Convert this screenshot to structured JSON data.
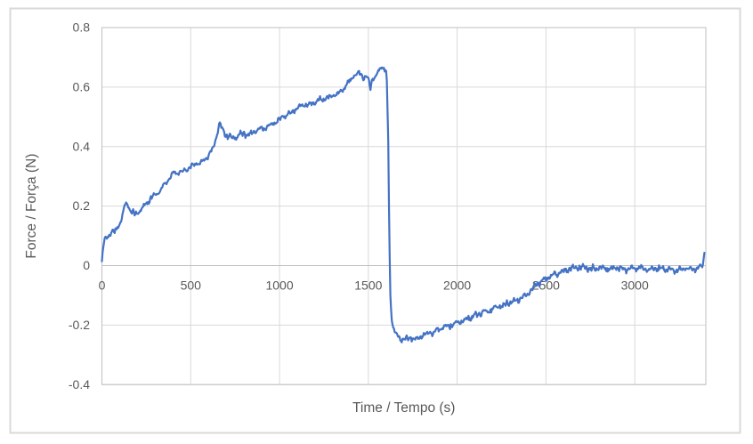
{
  "window": {
    "background": "#ffffff",
    "frame_border_color": "#d9d9d9"
  },
  "chart": {
    "tick_label_color": "#595959",
    "axis_title_color": "#595959",
    "gridline_color": "#d9d9d9",
    "axis_line_color": "#bfbfbf",
    "plot_background": "#ffffff"
  },
  "chart_data": {
    "type": "line",
    "title": "",
    "xlabel": "Time / Tempo (s)",
    "ylabel": "Force / Força (N)",
    "xlim": [
      0,
      3400
    ],
    "ylim": [
      -0.4,
      0.8
    ],
    "x_tick_values": [
      0,
      500,
      1000,
      1500,
      2000,
      2500,
      3000
    ],
    "x_tick_labels": [
      "0",
      "500",
      "1000",
      "1500",
      "2000",
      "2500",
      "3000"
    ],
    "y_tick_values": [
      0.8,
      0.6,
      0.4,
      0.2,
      0,
      -0.2,
      -0.4
    ],
    "y_tick_labels": [
      "0.8",
      "0.6",
      "0.4",
      "0.2",
      "0",
      "-0.2",
      "-0.4"
    ],
    "grid": true,
    "legend": false,
    "series": [
      {
        "name": "Force / Força",
        "color": "#4472C4",
        "line_width": 2.2,
        "noise_amplitude": 0.0085,
        "sample_step_s": 4,
        "points": [
          [
            0,
            0.012
          ],
          [
            6,
            0.055
          ],
          [
            14,
            0.085
          ],
          [
            25,
            0.093
          ],
          [
            40,
            0.105
          ],
          [
            55,
            0.116
          ],
          [
            70,
            0.112
          ],
          [
            85,
            0.128
          ],
          [
            100,
            0.142
          ],
          [
            112,
            0.155
          ],
          [
            122,
            0.19
          ],
          [
            132,
            0.205
          ],
          [
            142,
            0.21
          ],
          [
            155,
            0.19
          ],
          [
            170,
            0.176
          ],
          [
            185,
            0.172
          ],
          [
            200,
            0.178
          ],
          [
            225,
            0.19
          ],
          [
            250,
            0.21
          ],
          [
            285,
            0.232
          ],
          [
            310,
            0.243
          ],
          [
            340,
            0.262
          ],
          [
            370,
            0.285
          ],
          [
            400,
            0.307
          ],
          [
            425,
            0.313
          ],
          [
            455,
            0.316
          ],
          [
            490,
            0.33
          ],
          [
            525,
            0.342
          ],
          [
            560,
            0.347
          ],
          [
            590,
            0.36
          ],
          [
            625,
            0.39
          ],
          [
            648,
            0.44
          ],
          [
            662,
            0.478
          ],
          [
            680,
            0.455
          ],
          [
            705,
            0.437
          ],
          [
            740,
            0.428
          ],
          [
            775,
            0.441
          ],
          [
            805,
            0.443
          ],
          [
            835,
            0.44
          ],
          [
            870,
            0.456
          ],
          [
            915,
            0.462
          ],
          [
            960,
            0.476
          ],
          [
            1000,
            0.49
          ],
          [
            1040,
            0.505
          ],
          [
            1080,
            0.52
          ],
          [
            1125,
            0.538
          ],
          [
            1170,
            0.543
          ],
          [
            1220,
            0.553
          ],
          [
            1270,
            0.563
          ],
          [
            1320,
            0.576
          ],
          [
            1370,
            0.6
          ],
          [
            1400,
            0.625
          ],
          [
            1418,
            0.637
          ],
          [
            1445,
            0.646
          ],
          [
            1465,
            0.639
          ],
          [
            1490,
            0.633
          ],
          [
            1504,
            0.622
          ],
          [
            1511,
            0.588
          ],
          [
            1519,
            0.625
          ],
          [
            1535,
            0.633
          ],
          [
            1555,
            0.65
          ],
          [
            1572,
            0.665
          ],
          [
            1585,
            0.668
          ],
          [
            1596,
            0.654
          ],
          [
            1603,
            0.648
          ],
          [
            1612,
            0.42
          ],
          [
            1618,
            0.1
          ],
          [
            1624,
            -0.1
          ],
          [
            1630,
            -0.17
          ],
          [
            1638,
            -0.205
          ],
          [
            1650,
            -0.222
          ],
          [
            1663,
            -0.237
          ],
          [
            1680,
            -0.248
          ],
          [
            1700,
            -0.244
          ],
          [
            1720,
            -0.25
          ],
          [
            1742,
            -0.243
          ],
          [
            1762,
            -0.249
          ],
          [
            1785,
            -0.24
          ],
          [
            1815,
            -0.233
          ],
          [
            1845,
            -0.228
          ],
          [
            1875,
            -0.221
          ],
          [
            1905,
            -0.213
          ],
          [
            1940,
            -0.206
          ],
          [
            1975,
            -0.198
          ],
          [
            2010,
            -0.19
          ],
          [
            2045,
            -0.182
          ],
          [
            2080,
            -0.173
          ],
          [
            2115,
            -0.166
          ],
          [
            2150,
            -0.158
          ],
          [
            2185,
            -0.15
          ],
          [
            2220,
            -0.141
          ],
          [
            2255,
            -0.134
          ],
          [
            2290,
            -0.125
          ],
          [
            2325,
            -0.118
          ],
          [
            2360,
            -0.11
          ],
          [
            2390,
            -0.098
          ],
          [
            2415,
            -0.082
          ],
          [
            2440,
            -0.068
          ],
          [
            2465,
            -0.057
          ],
          [
            2490,
            -0.048
          ],
          [
            2520,
            -0.038
          ],
          [
            2550,
            -0.028
          ],
          [
            2585,
            -0.02
          ],
          [
            2620,
            -0.013
          ],
          [
            2660,
            -0.008
          ],
          [
            2700,
            -0.006
          ],
          [
            2750,
            -0.012
          ],
          [
            2800,
            -0.007
          ],
          [
            2850,
            -0.011
          ],
          [
            2900,
            -0.006
          ],
          [
            2950,
            -0.013
          ],
          [
            3000,
            -0.008
          ],
          [
            3060,
            -0.012
          ],
          [
            3120,
            -0.009
          ],
          [
            3180,
            -0.013
          ],
          [
            3240,
            -0.014
          ],
          [
            3290,
            -0.01
          ],
          [
            3330,
            -0.013
          ],
          [
            3360,
            -0.008
          ],
          [
            3378,
            -0.004
          ],
          [
            3386,
            0.012
          ],
          [
            3392,
            0.045
          ]
        ]
      }
    ]
  }
}
